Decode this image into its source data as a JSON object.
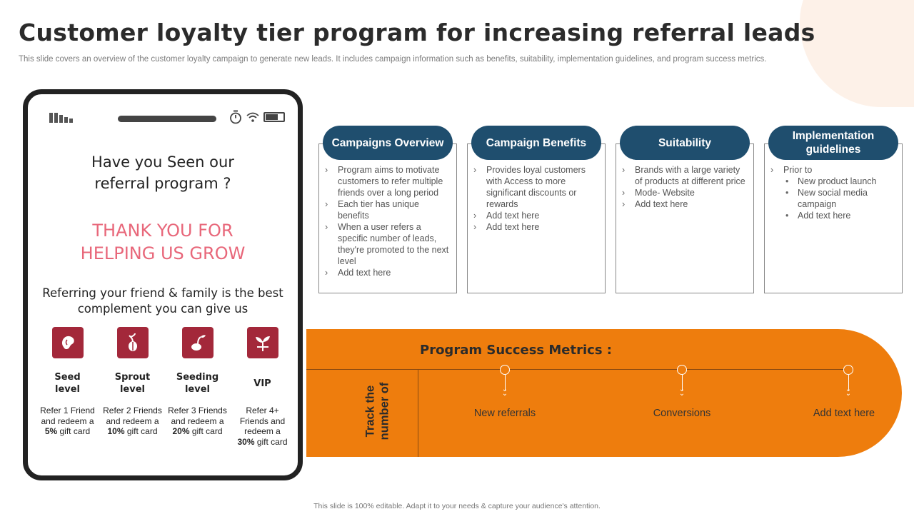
{
  "title": "Customer loyalty tier program for increasing referral leads",
  "subtitle": "This slide covers an overview of the customer loyalty campaign to generate new leads. It includes campaign information such as benefits, suitability, implementation guidelines, and program success metrics.",
  "phone": {
    "heading_line1": "Have you Seen our",
    "heading_line2": "referral program ?",
    "thanks_line1": "THANK YOU FOR",
    "thanks_line2": "HELPING US GROW",
    "tagline": "Referring your friend & family is the best complement you can give us",
    "tiers": [
      {
        "name_line1": "Seed",
        "name_line2": "level",
        "desc": "Refer 1 Friend and redeem a",
        "pct": "5%",
        "suffix": " gift card",
        "icon": "seed-icon"
      },
      {
        "name_line1": "Sprout",
        "name_line2": "level",
        "desc": "Refer 2 Friends and redeem a",
        "pct": "10%",
        "suffix": " gift card",
        "icon": "sprout-icon"
      },
      {
        "name_line1": "Seeding",
        "name_line2": "level",
        "desc": "Refer 3 Friends and redeem a",
        "pct": "20%",
        "suffix": " gift card",
        "icon": "seedling-icon"
      },
      {
        "name_line1": "VIP",
        "name_line2": "",
        "desc": "Refer 4+ Friends and redeem a",
        "pct": "30%",
        "suffix": " gift card",
        "icon": "plant-icon"
      }
    ]
  },
  "cards": [
    {
      "title": "Campaigns Overview",
      "items": [
        "Program aims to motivate customers to refer multiple friends over a long period",
        "Each tier has unique benefits",
        "When a user refers a specific number of leads, they're promoted to the next level",
        "Add text here"
      ]
    },
    {
      "title": "Campaign Benefits",
      "items": [
        "Provides loyal customers with Access to more significant discounts or rewards",
        "Add text here",
        "Add text here"
      ]
    },
    {
      "title": "Suitability",
      "items": [
        "Brands with a large variety of products at different price",
        "Mode- Website",
        "Add text here"
      ]
    },
    {
      "title": "Implementation guidelines",
      "intro": "Prior to",
      "items": [
        "New product launch",
        "New social media campaign",
        "Add text here"
      ]
    }
  ],
  "metrics": {
    "title": "Program Success Metrics :",
    "track_line1": "Track the",
    "track_line2": "number of",
    "items": [
      "New referrals",
      "Conversions",
      "Add text here"
    ]
  },
  "footer": "This slide is 100% editable.  Adapt it to your needs & capture your audience's attention.",
  "colors": {
    "pill": "#1f4e6e",
    "accent_orange": "#ee7d0d",
    "tier_icon": "#a3283a",
    "thanks_text": "#e8677a"
  }
}
